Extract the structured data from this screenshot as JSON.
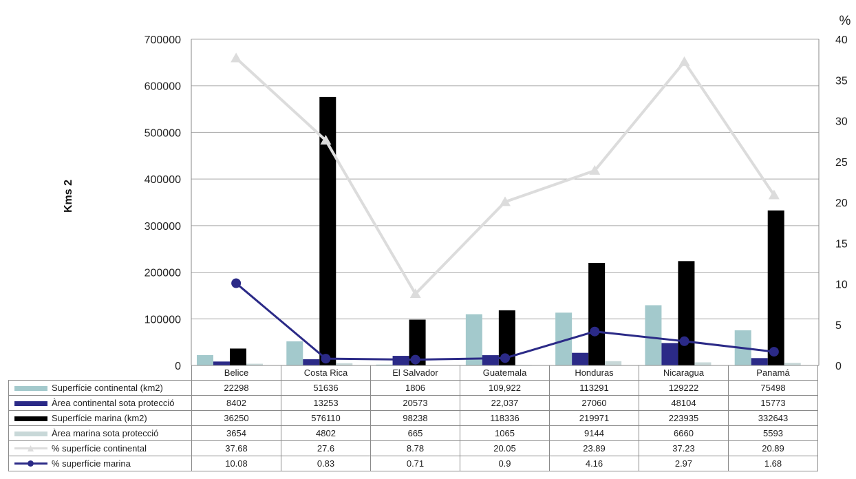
{
  "chart_data": {
    "type": "bar",
    "ylabel": "Kms 2",
    "y2label": "%",
    "ylim": [
      0,
      700000
    ],
    "y_ticks": [
      "700000",
      "600000",
      "500000",
      "400000",
      "300000",
      "200000",
      "100000",
      "0"
    ],
    "y2lim": [
      0,
      40
    ],
    "y2_ticks": [
      "40",
      "35",
      "30",
      "25",
      "20",
      "15",
      "10",
      "5",
      "0"
    ],
    "grid": "horizontal",
    "legend": "data table below chart",
    "categories": [
      "Belice",
      "Costa Rica",
      "El Salvador",
      "Guatemala",
      "Honduras",
      "Nicaragua",
      "Panamá"
    ],
    "series": [
      {
        "name": "Superfície continental (km2)",
        "kind": "bar",
        "color": "#a3c9cc",
        "values": [
          22298,
          51636,
          1806,
          109922,
          113291,
          129222,
          75498
        ],
        "labels": [
          "22298",
          "51636",
          "1806",
          "109,922",
          "113291",
          "129222",
          "75498"
        ]
      },
      {
        "name": "Àrea continental sota protecció",
        "kind": "bar",
        "color": "#2b2a87",
        "values": [
          8402,
          13253,
          20573,
          22037,
          27060,
          48104,
          15773
        ],
        "labels": [
          "8402",
          "13253",
          "20573",
          "22,037",
          "27060",
          "48104",
          "15773"
        ]
      },
      {
        "name": "Superfície marina (km2)",
        "kind": "bar",
        "color": "#000000",
        "values": [
          36250,
          576110,
          98238,
          118336,
          219971,
          223935,
          332643
        ],
        "labels": [
          "36250",
          "576110",
          "98238",
          "118336",
          "219971",
          "223935",
          "332643"
        ]
      },
      {
        "name": "Àrea marina sota protecció",
        "kind": "bar",
        "color": "#c8d8d8",
        "values": [
          3654,
          4802,
          665,
          1065,
          9144,
          6660,
          5593
        ],
        "labels": [
          "3654",
          "4802",
          "665",
          "1065",
          "9144",
          "6660",
          "5593"
        ]
      },
      {
        "name": "% superfície continental",
        "kind": "line",
        "axis": "right",
        "color": "#dcdcdc",
        "marker": "triangle",
        "values": [
          37.68,
          27.6,
          8.78,
          20.05,
          23.89,
          37.23,
          20.89
        ],
        "labels": [
          "37.68",
          "27.6",
          "8.78",
          "20.05",
          "23.89",
          "37.23",
          "20.89"
        ]
      },
      {
        "name": "% superfície marina",
        "kind": "line",
        "axis": "right",
        "color": "#2b2a87",
        "marker": "circle",
        "values": [
          10.08,
          0.83,
          0.71,
          0.9,
          4.16,
          2.97,
          1.68
        ],
        "labels": [
          "10.08",
          "0.83",
          "0.71",
          "0.9",
          "4.16",
          "2.97",
          "1.68"
        ]
      }
    ]
  }
}
